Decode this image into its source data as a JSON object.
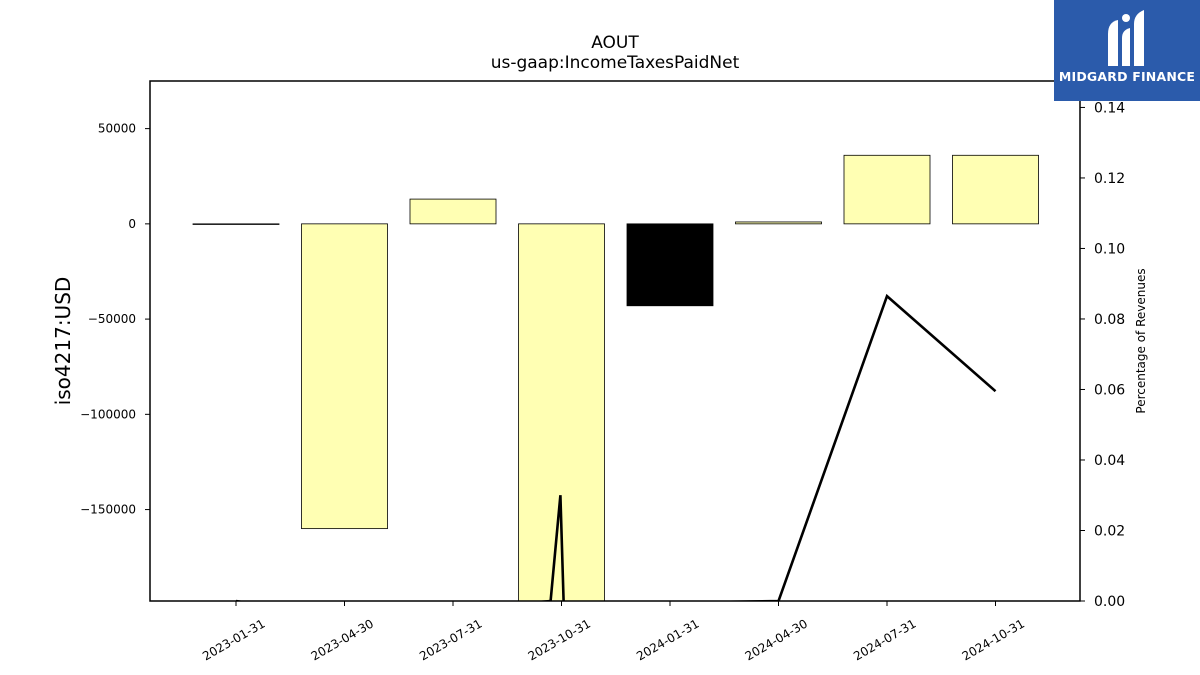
{
  "chart_data": {
    "type": "bar",
    "title": "AOUT",
    "subtitle": "us-gaap:IncomeTaxesPaidNet",
    "ylabel": "iso4217:USD",
    "y2label": "Percentage of Revenues",
    "categories": [
      "2023-01-31",
      "2023-04-30",
      "2023-07-31",
      "2023-10-31",
      "2024-01-31",
      "2024-04-30",
      "2024-07-31",
      "2024-10-31"
    ],
    "values": [
      -200,
      -160000,
      13000,
      -199000,
      -43000,
      1000,
      36000,
      36000
    ],
    "bar_colors": [
      "#ffffb3",
      "#ffffb3",
      "#ffffb3",
      "#ffffb3",
      "#000000",
      "#ffffb3",
      "#ffffb3",
      "#ffffb3"
    ],
    "ylim": [
      -198000,
      75000
    ],
    "yticks": [
      50000,
      0,
      -50000,
      -100000,
      -150000
    ],
    "ytick_labels": [
      "50000",
      "0",
      "−50000",
      "−100000",
      "−150000"
    ],
    "line_series": {
      "x": [
        0,
        1,
        2.9,
        2.99,
        3.02,
        5,
        6,
        7
      ],
      "values": [
        0,
        -0.005,
        0,
        0.03,
        -0.001,
        0,
        0.0865,
        0.0595
      ]
    },
    "y2lim": [
      0,
      0.1475
    ],
    "y2ticks": [
      0.0,
      0.02,
      0.04,
      0.06,
      0.08,
      0.1,
      0.12,
      0.14
    ],
    "y2tick_labels": [
      "0.00",
      "0.02",
      "0.04",
      "0.06",
      "0.08",
      "0.10",
      "0.12",
      "0.14"
    ],
    "grid": false
  },
  "logo": {
    "text": "MIDGARD FINANCE",
    "mark_icon": "midgard-logo-icon",
    "background": "#2b5bab"
  }
}
